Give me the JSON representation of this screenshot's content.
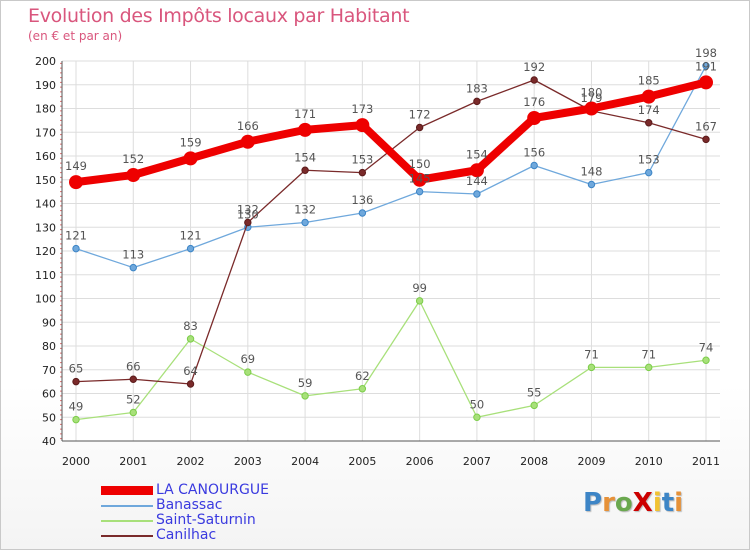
{
  "header": {
    "title": "Evolution des Impôts locaux par Habitant",
    "subtitle": "(en € et par an)"
  },
  "logo_text": "ProXiti",
  "chart_data": {
    "type": "line",
    "title": "Evolution des Impôts locaux par Habitant",
    "subtitle": "(en € et par an)",
    "xlabel": "",
    "ylabel": "",
    "x": [
      2000,
      2001,
      2002,
      2003,
      2004,
      2005,
      2006,
      2007,
      2008,
      2009,
      2010,
      2011
    ],
    "ylim": [
      40,
      200
    ],
    "yticks": [
      40,
      50,
      60,
      70,
      80,
      90,
      100,
      110,
      120,
      130,
      140,
      150,
      160,
      170,
      180,
      190,
      200
    ],
    "grid": true,
    "legend_position": "bottom-left",
    "series": [
      {
        "name": "LA CANOURGUE",
        "color": "#ee0000",
        "values": [
          149,
          152,
          159,
          166,
          171,
          173,
          150,
          154,
          176,
          180,
          185,
          191
        ],
        "labels": [
          "149",
          "152",
          "159",
          "166",
          "171",
          "173",
          "150",
          "154",
          "176",
          "180",
          "185",
          "191"
        ],
        "style": "thick"
      },
      {
        "name": "Banassac",
        "color": "#6fa8dc",
        "marker": "#3d85c6",
        "values": [
          121,
          113,
          121,
          130,
          132,
          136,
          145,
          144,
          156,
          148,
          153,
          198
        ],
        "labels": [
          "121",
          "113",
          "121",
          "130",
          "132",
          "136",
          "145",
          "144",
          "156",
          "148",
          "153",
          "198"
        ],
        "style": "thin"
      },
      {
        "name": "Saint-Saturnin",
        "color": "#a8e07a",
        "marker": "#7ccd4a",
        "values": [
          49,
          52,
          83,
          69,
          59,
          62,
          99,
          50,
          55,
          71,
          71,
          74
        ],
        "labels": [
          "49",
          "52",
          "83",
          "69",
          "59",
          "62",
          "99",
          "50",
          "55",
          "71",
          "71",
          "74"
        ],
        "style": "thin"
      },
      {
        "name": "Canilhac",
        "color": "#7a2a2a",
        "marker": "#5c1c1c",
        "values": [
          65,
          66,
          64,
          132,
          154,
          153,
          172,
          183,
          192,
          179,
          174,
          167
        ],
        "labels": [
          "65",
          "66",
          "64",
          "132",
          "154",
          "153",
          "172",
          "183",
          "192",
          "179",
          "174",
          "167"
        ],
        "style": "thin"
      }
    ]
  }
}
